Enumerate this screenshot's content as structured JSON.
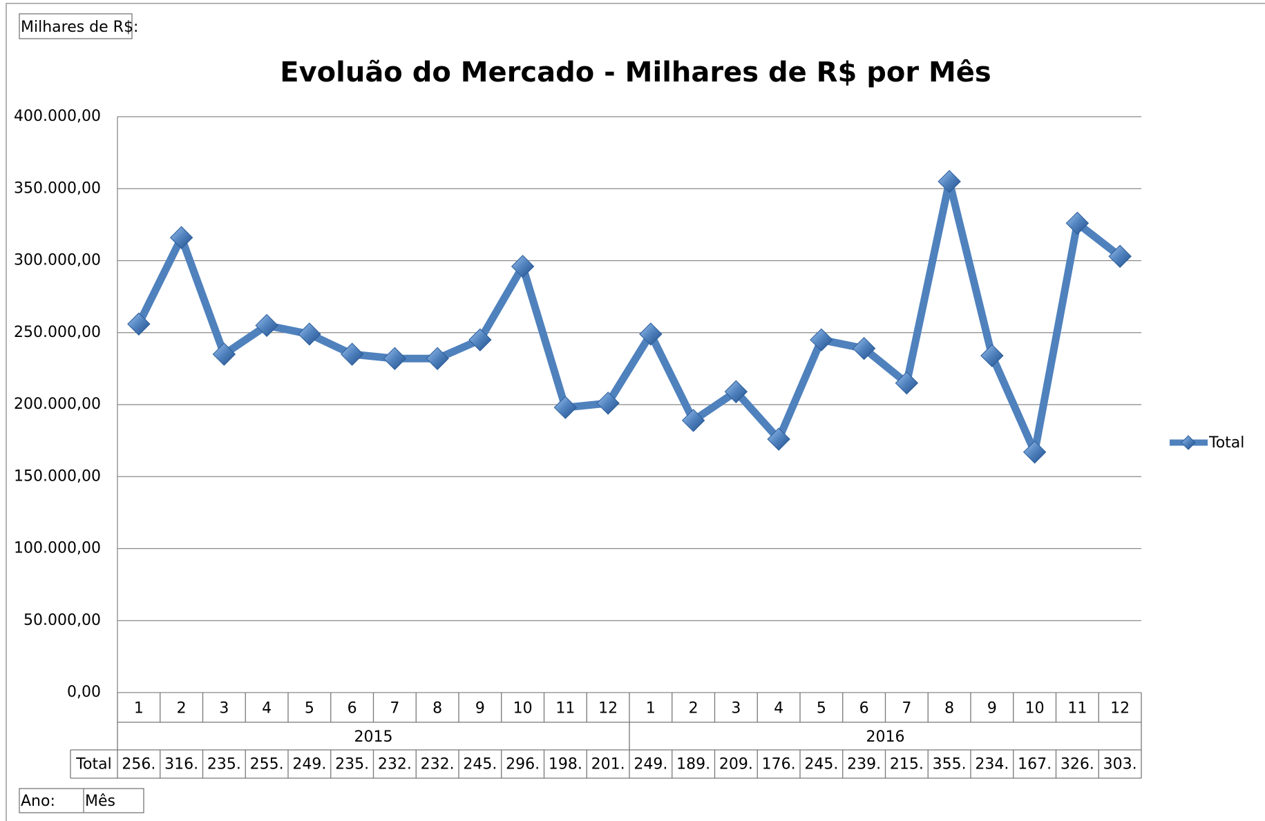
{
  "chart_data": {
    "type": "line",
    "title": "Evoluão do Mercado - Milhares de R$ por Mês",
    "field_labels": {
      "values": "Milhares de R$:",
      "rows": "Ano:",
      "columns": "Mês"
    },
    "categories": [
      "1",
      "2",
      "3",
      "4",
      "5",
      "6",
      "7",
      "8",
      "9",
      "10",
      "11",
      "12",
      "1",
      "2",
      "3",
      "4",
      "5",
      "6",
      "7",
      "8",
      "9",
      "10",
      "11",
      "12"
    ],
    "groups": [
      "2015",
      "2016"
    ],
    "series": [
      {
        "name": "Total",
        "color": "#4f81bd",
        "values": [
          256000,
          316000,
          235000,
          255000,
          249000,
          235000,
          232000,
          232000,
          245000,
          296000,
          198000,
          201000,
          249000,
          189000,
          209000,
          176000,
          245000,
          239000,
          215000,
          355000,
          234000,
          167000,
          326000,
          303000
        ],
        "value_labels": [
          "256.",
          "316.",
          "235.",
          "255.",
          "249.",
          "235.",
          "232.",
          "232.",
          "245.",
          "296.",
          "198.",
          "201.",
          "249.",
          "189.",
          "209.",
          "176.",
          "245.",
          "239.",
          "215.",
          "355.",
          "234.",
          "167.",
          "326.",
          "303."
        ]
      }
    ],
    "ylim": [
      0,
      400000
    ],
    "yticks": [
      {
        "value": 0,
        "label": "0,00"
      },
      {
        "value": 50000,
        "label": "50.000,00"
      },
      {
        "value": 100000,
        "label": "100.000,00"
      },
      {
        "value": 150000,
        "label": "150.000,00"
      },
      {
        "value": 200000,
        "label": "200.000,00"
      },
      {
        "value": 250000,
        "label": "250.000,00"
      },
      {
        "value": 300000,
        "label": "300.000,00"
      },
      {
        "value": 350000,
        "label": "350.000,00"
      },
      {
        "value": 400000,
        "label": "400.000,00"
      }
    ],
    "grid": true,
    "legend": "right"
  }
}
